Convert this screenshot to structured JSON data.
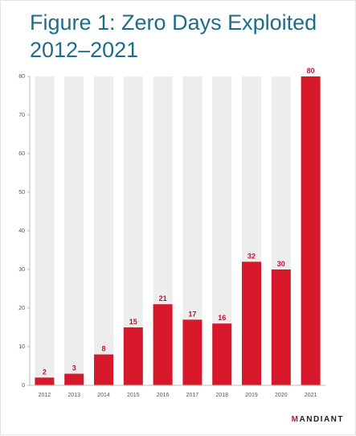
{
  "title": "Figure 1: Zero Days Exploited 2012–2021",
  "brand": {
    "first_letter": "M",
    "rest": "ANDIANT"
  },
  "colors": {
    "title": "#1d6d8a",
    "bar": "#d7182a",
    "track": "#ededed",
    "label": "#c8102e",
    "axis": "#555555"
  },
  "chart_data": {
    "type": "bar",
    "title": "Figure 1: Zero Days Exploited 2012–2021",
    "xlabel": "",
    "ylabel": "",
    "categories": [
      "2012",
      "2013",
      "2014",
      "2015",
      "2016",
      "2017",
      "2018",
      "2019",
      "2020",
      "2021"
    ],
    "values": [
      2,
      3,
      8,
      15,
      21,
      17,
      16,
      32,
      30,
      80
    ],
    "ylim": [
      0,
      80
    ],
    "yticks": [
      0,
      10,
      20,
      30,
      40,
      50,
      60,
      70,
      80
    ],
    "grid": false,
    "background_tracks": true,
    "data_labels": true
  }
}
